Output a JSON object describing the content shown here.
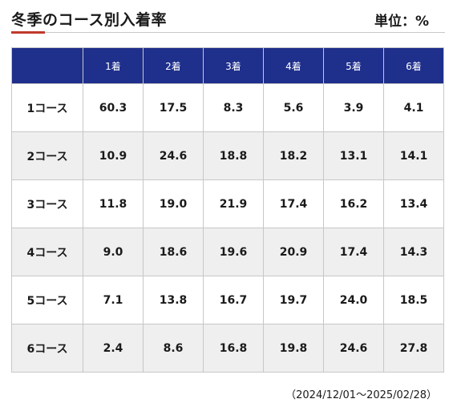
{
  "header": {
    "title": "冬季のコース別入着率",
    "unit": "単位：%"
  },
  "table": {
    "corner": "",
    "columns": [
      "1着",
      "2着",
      "3着",
      "4着",
      "5着",
      "6着"
    ],
    "rows": [
      {
        "course": "1コース",
        "values": [
          "60.3",
          "17.5",
          "8.3",
          "5.6",
          "3.9",
          "4.1"
        ]
      },
      {
        "course": "2コース",
        "values": [
          "10.9",
          "24.6",
          "18.8",
          "18.2",
          "13.1",
          "14.1"
        ]
      },
      {
        "course": "3コース",
        "values": [
          "11.8",
          "19.0",
          "21.9",
          "17.4",
          "16.2",
          "13.4"
        ]
      },
      {
        "course": "4コース",
        "values": [
          "9.0",
          "18.6",
          "19.6",
          "20.9",
          "17.4",
          "14.3"
        ]
      },
      {
        "course": "5コース",
        "values": [
          "7.1",
          "13.8",
          "16.7",
          "19.7",
          "24.0",
          "18.5"
        ]
      },
      {
        "course": "6コース",
        "values": [
          "2.4",
          "8.6",
          "16.8",
          "19.8",
          "24.6",
          "27.8"
        ]
      }
    ]
  },
  "footer": {
    "period": "（2024/12/01～2025/02/28）"
  },
  "colors": {
    "header_bg": "#1f2f8c",
    "accent_rule": "#c0392b",
    "stripe": "#efefef"
  }
}
